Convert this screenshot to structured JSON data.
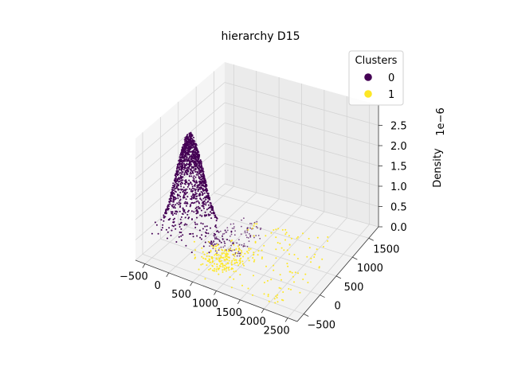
{
  "chart_data": {
    "type": "scatter",
    "title": "hierarchy D15",
    "xlabel": "",
    "ylabel": "",
    "zlabel": "Density",
    "z_offset_text": "1e−6",
    "x_ticks": [
      "−500",
      "0",
      "500",
      "1000",
      "1500",
      "2000",
      "2500"
    ],
    "y_ticks": [
      "−500",
      "0",
      "500",
      "1000",
      "1500"
    ],
    "z_ticks": [
      "0.0",
      "0.5",
      "1.0",
      "1.5",
      "2.0",
      "2.5"
    ],
    "xlim": [
      -700,
      2700
    ],
    "ylim": [
      -700,
      1800
    ],
    "zlim": [
      0,
      3e-06
    ],
    "grid": true,
    "legend": {
      "title": "Clusters",
      "placement": "top-right",
      "entries": [
        {
          "label": "0",
          "color": "#440154"
        },
        {
          "label": "1",
          "color": "#fde725"
        }
      ]
    },
    "series": [
      {
        "name": "0",
        "color": "#440154",
        "points_approx": 2000,
        "density_peak": {
          "x": -300,
          "y": 300,
          "z": 2.5e-06
        },
        "x_range": [
          -650,
          800
        ],
        "y_range": [
          -150,
          900
        ]
      },
      {
        "name": "1",
        "color": "#fde725",
        "points_approx": 300,
        "density_peak": {
          "x": 700,
          "y": 0,
          "z": 1e-07
        },
        "x_range": [
          300,
          2400
        ],
        "y_range": [
          -600,
          1200
        ]
      }
    ]
  }
}
